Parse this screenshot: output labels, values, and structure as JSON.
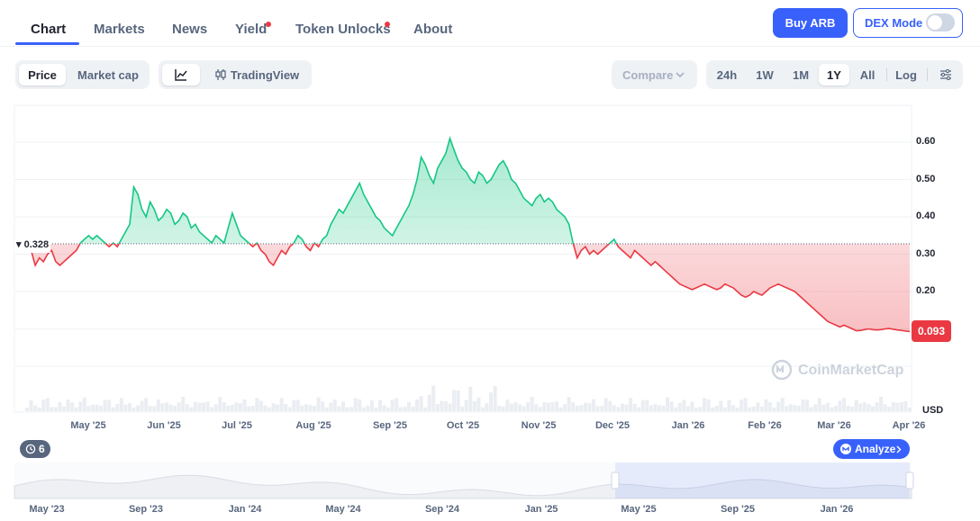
{
  "tabs": [
    {
      "label": "Chart",
      "active": true
    },
    {
      "label": "Markets"
    },
    {
      "label": "News"
    },
    {
      "label": "Yield",
      "dot": true
    },
    {
      "label": "Token Unlocks",
      "dot": true
    },
    {
      "label": "About"
    }
  ],
  "buy_button": "Buy ARB",
  "dex_mode": {
    "label": "DEX Mode",
    "on": false
  },
  "view_toggle": {
    "items": [
      "Price",
      "Market cap"
    ],
    "active": "Price"
  },
  "chart_style": {
    "line_icon": "line-chart-icon",
    "tradingview_icon": "candlestick-icon",
    "tradingview_label": "TradingView",
    "active": "line"
  },
  "compare": {
    "label": "Compare",
    "icon": "chevron-down-icon"
  },
  "ranges": {
    "items": [
      "24h",
      "1W",
      "1M",
      "1Y",
      "All"
    ],
    "active": "1Y",
    "log": "Log",
    "settings_icon": "settings-sliders-icon"
  },
  "chart_data": {
    "type": "area",
    "y_ticks": [
      "0.60",
      "0.50",
      "0.40",
      "0.30",
      "0.20"
    ],
    "ylim": [
      0.0,
      0.75
    ],
    "y_unit": "USD",
    "baseline": 0.328,
    "baseline_label": "0.328",
    "current": 0.093,
    "current_label": "0.093",
    "x_ticks": [
      "May '25",
      "Jun '25",
      "Jul '25",
      "Aug '25",
      "Sep '25",
      "Oct '25",
      "Nov '25",
      "Dec '25",
      "Jan '26",
      "Feb '26",
      "Mar '26",
      "Apr '26"
    ],
    "series": [
      {
        "values": [
          0.33,
          0.31,
          0.27,
          0.29,
          0.28,
          0.3,
          0.31,
          0.28,
          0.27,
          0.28,
          0.29,
          0.3,
          0.31,
          0.33,
          0.34,
          0.35,
          0.34,
          0.35,
          0.34,
          0.33,
          0.32,
          0.33,
          0.32,
          0.34,
          0.36,
          0.38,
          0.48,
          0.46,
          0.42,
          0.4,
          0.44,
          0.42,
          0.39,
          0.4,
          0.42,
          0.41,
          0.38,
          0.39,
          0.41,
          0.4,
          0.37,
          0.38,
          0.36,
          0.35,
          0.34,
          0.33,
          0.35,
          0.34,
          0.33,
          0.37,
          0.41,
          0.38,
          0.35,
          0.34,
          0.33,
          0.32,
          0.33,
          0.31,
          0.3,
          0.28,
          0.27,
          0.29,
          0.31,
          0.3,
          0.32,
          0.33,
          0.35,
          0.34,
          0.32,
          0.31,
          0.33,
          0.32,
          0.34,
          0.35,
          0.38,
          0.4,
          0.42,
          0.41,
          0.43,
          0.45,
          0.47,
          0.49,
          0.46,
          0.44,
          0.42,
          0.4,
          0.39,
          0.37,
          0.36,
          0.35,
          0.37,
          0.39,
          0.41,
          0.43,
          0.46,
          0.5,
          0.56,
          0.54,
          0.51,
          0.49,
          0.53,
          0.55,
          0.57,
          0.61,
          0.58,
          0.55,
          0.53,
          0.52,
          0.5,
          0.49,
          0.52,
          0.51,
          0.49,
          0.5,
          0.52,
          0.54,
          0.55,
          0.53,
          0.5,
          0.49,
          0.47,
          0.45,
          0.44,
          0.43,
          0.45,
          0.46,
          0.44,
          0.45,
          0.44,
          0.42,
          0.41,
          0.4,
          0.38,
          0.33,
          0.29,
          0.31,
          0.32,
          0.3,
          0.31,
          0.3,
          0.31,
          0.32,
          0.33,
          0.34,
          0.32,
          0.31,
          0.3,
          0.29,
          0.31,
          0.3,
          0.29,
          0.28,
          0.27,
          0.28,
          0.27,
          0.26,
          0.25,
          0.24,
          0.23,
          0.22,
          0.215,
          0.21,
          0.205,
          0.21,
          0.215,
          0.22,
          0.215,
          0.21,
          0.205,
          0.21,
          0.22,
          0.215,
          0.21,
          0.2,
          0.19,
          0.185,
          0.19,
          0.2,
          0.195,
          0.19,
          0.2,
          0.21,
          0.215,
          0.22,
          0.215,
          0.21,
          0.205,
          0.2,
          0.19,
          0.18,
          0.17,
          0.16,
          0.15,
          0.14,
          0.13,
          0.12,
          0.115,
          0.11,
          0.105,
          0.11,
          0.105,
          0.1,
          0.095,
          0.096,
          0.098,
          0.1,
          0.098,
          0.097,
          0.098,
          0.1,
          0.101,
          0.099,
          0.097,
          0.096,
          0.094,
          0.093
        ]
      }
    ]
  },
  "watermark": "CoinMarketCap",
  "events_badge": {
    "icon": "history-icon",
    "count": "6"
  },
  "analyze_button": {
    "label": "Analyze",
    "icon": "analyze-icon",
    "chevron": "chevron-right-icon"
  },
  "navigator": {
    "labels": [
      "May '23",
      "Sep '23",
      "Jan '24",
      "May '24",
      "Sep '24",
      "Jan '25",
      "May '25",
      "Sep '25",
      "Jan '26"
    ]
  }
}
